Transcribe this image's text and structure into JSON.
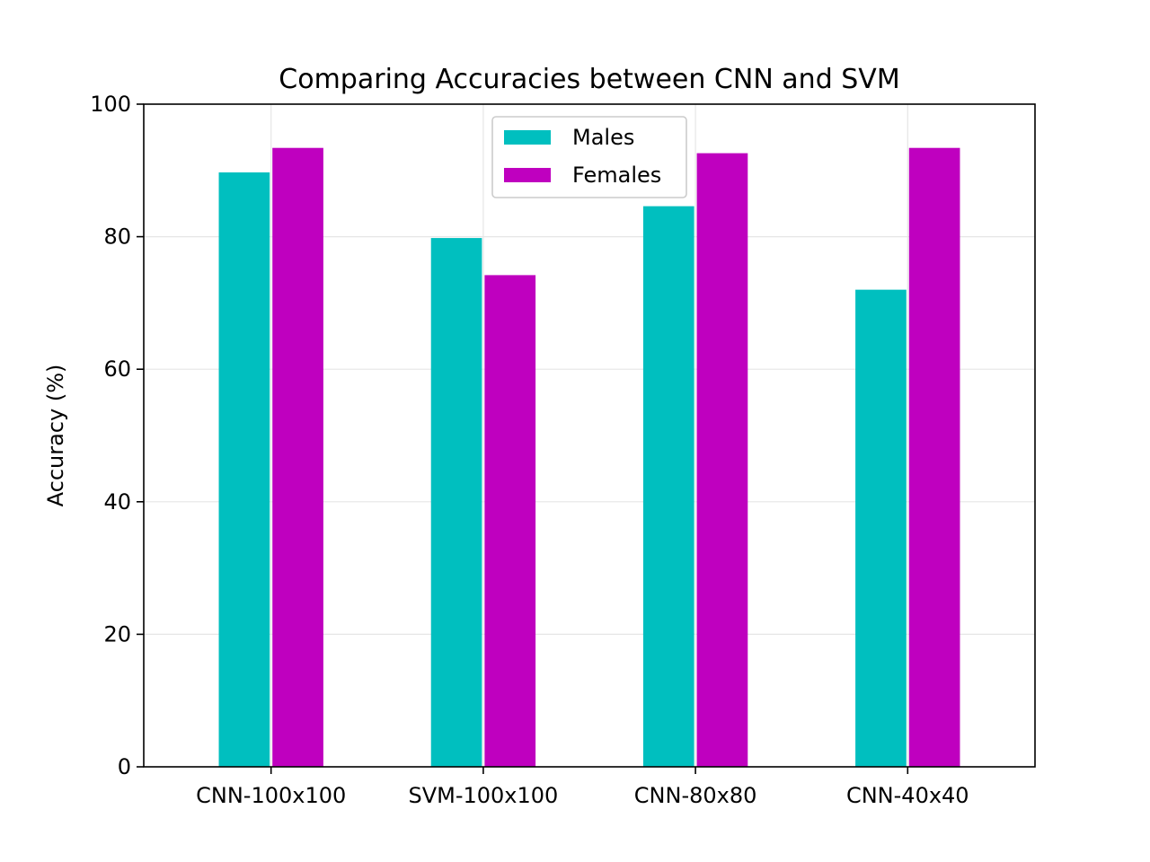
{
  "chart_data": {
    "type": "bar",
    "title": "Comparing Accuracies between CNN and SVM",
    "xlabel": "",
    "ylabel": "Accuracy (%)",
    "categories": [
      "CNN-100x100",
      "SVM-100x100",
      "CNN-80x80",
      "CNN-40x40"
    ],
    "series": [
      {
        "name": "Males",
        "values": [
          89.7,
          79.8,
          84.6,
          72.0
        ],
        "color": "#00bfbf"
      },
      {
        "name": "Females",
        "values": [
          93.4,
          74.2,
          92.6,
          93.4
        ],
        "color": "#bf00bf"
      }
    ],
    "ylim": [
      0,
      100
    ],
    "yticks": [
      0,
      20,
      40,
      60,
      80,
      100
    ],
    "grid": true,
    "legend_position": "upper center"
  }
}
